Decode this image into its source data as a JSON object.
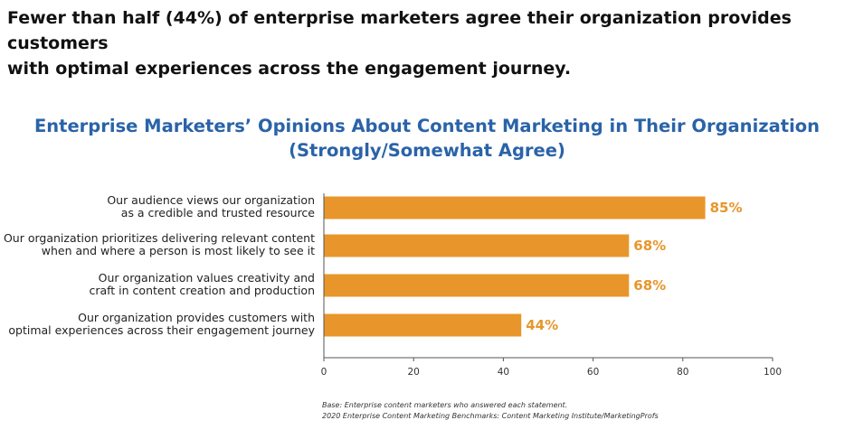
{
  "headline": {
    "line1": "Fewer than half (44%) of enterprise marketers agree their organization provides customers",
    "line2": "with optimal experiences across the engagement journey."
  },
  "colors": {
    "bar": "#E8962B",
    "value_label": "#E8962B",
    "chart_title": "#2A63A8"
  },
  "chart_data": {
    "type": "bar",
    "orientation": "horizontal",
    "title": "Enterprise Marketers’ Opinions About Content Marketing in Their Organization",
    "subtitle": "(Strongly/Somewhat Agree)",
    "categories": [
      [
        "Our audience views our organization",
        "as a credible and trusted resource"
      ],
      [
        "Our organization prioritizes delivering relevant content",
        "when and where a person is most likely to see it"
      ],
      [
        "Our organization values creativity and",
        "craft in content creation and production"
      ],
      [
        "Our organization provides customers with",
        "optimal experiences across their engagement journey"
      ]
    ],
    "values": [
      85,
      68,
      68,
      44
    ],
    "value_labels": [
      "85%",
      "68%",
      "68%",
      "44%"
    ],
    "xlim": [
      0,
      100
    ],
    "xticks": [
      0,
      20,
      40,
      60,
      80,
      100
    ],
    "grid": false,
    "legend": "none"
  },
  "source": {
    "line1": "Base: Enterprise content marketers who answered each statement.",
    "line2": "2020 Enterprise Content Marketing Benchmarks: Content Marketing Institute/MarketingProfs"
  }
}
